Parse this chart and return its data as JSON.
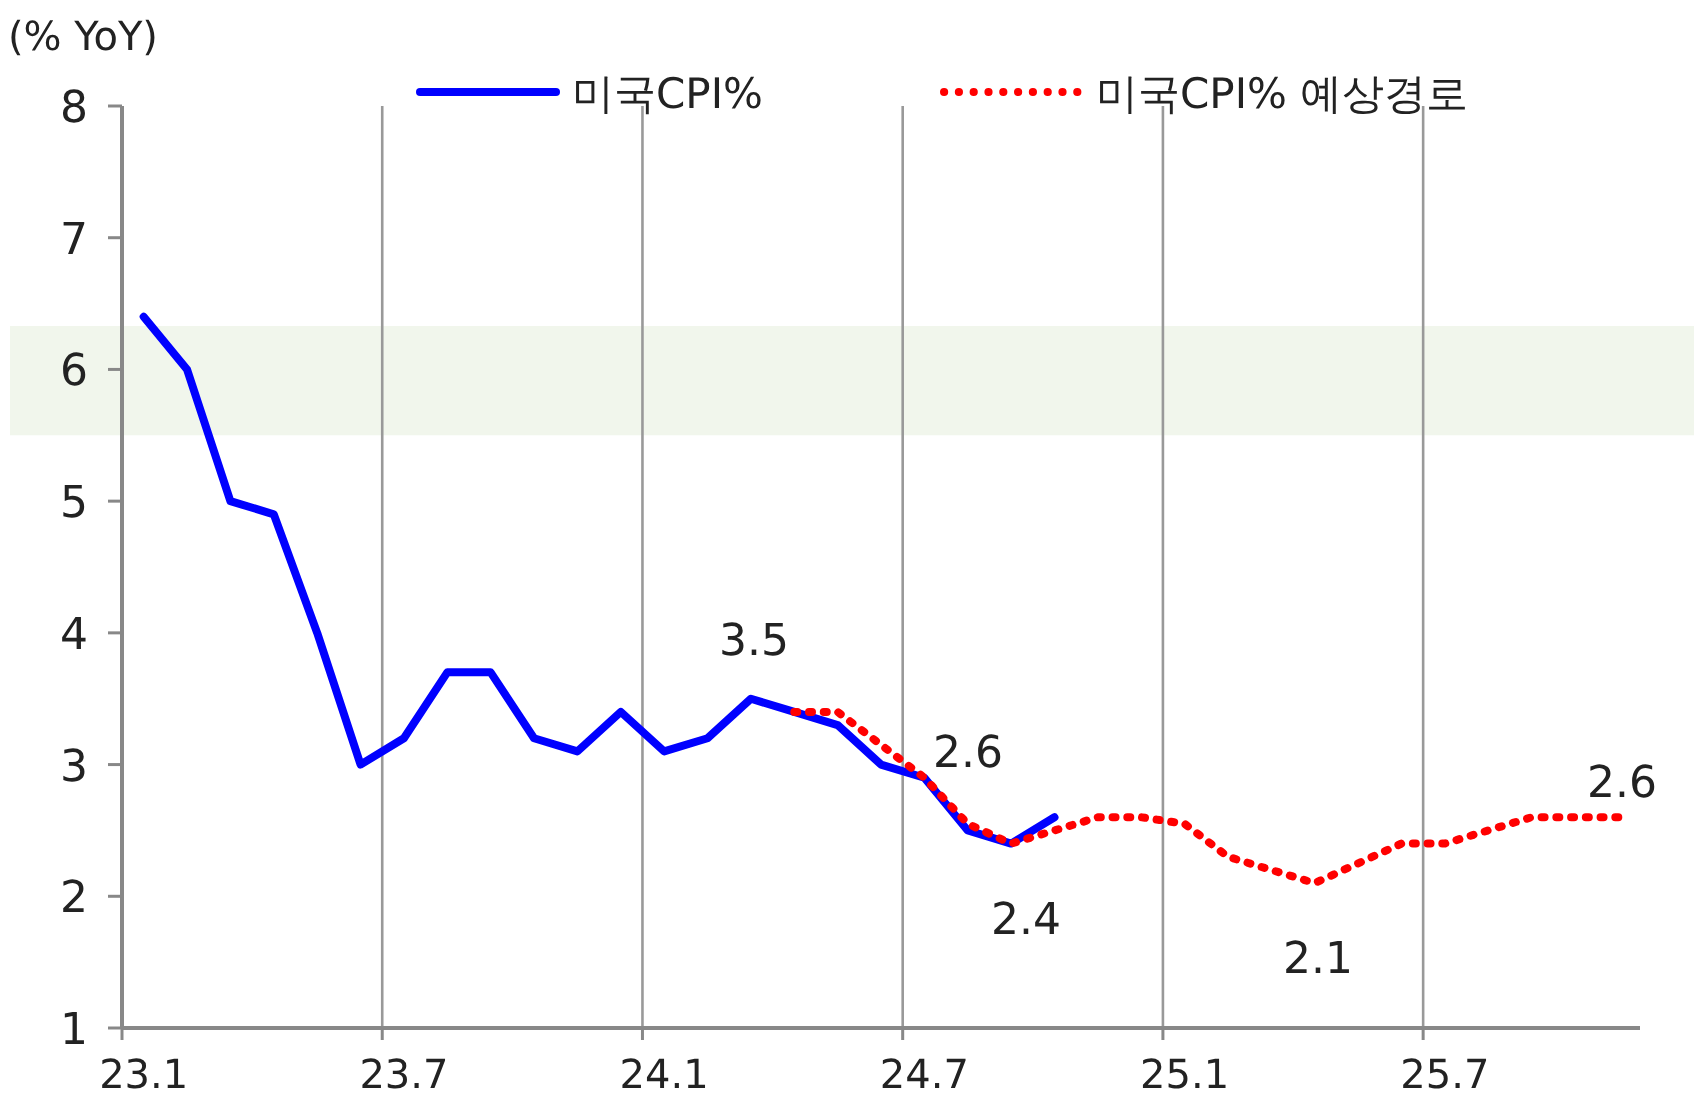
{
  "chart_data": {
    "type": "line",
    "ylabel": "(% YoY)",
    "categories": [
      "23.1",
      null,
      null,
      null,
      null,
      null,
      "23.7",
      null,
      null,
      null,
      null,
      null,
      "24.1",
      null,
      null,
      null,
      null,
      null,
      "24.7",
      null,
      null,
      null,
      null,
      null,
      "25.1",
      null,
      null,
      null,
      null,
      null,
      "25.7",
      null,
      null,
      null,
      null
    ],
    "ylim": [
      1,
      8
    ],
    "yticks": [
      1,
      2,
      3,
      4,
      5,
      6,
      7,
      8
    ],
    "grid": "x",
    "legend": "top",
    "bands": [
      {
        "axis": "y",
        "from": 5.5,
        "to": 6.33,
        "color": "#f1f6ec"
      }
    ],
    "series": [
      {
        "name": "미국CPI%",
        "color": "#0000ff",
        "line_style": "solid",
        "values": [
          6.4,
          6.0,
          5.0,
          4.9,
          4.0,
          3.0,
          3.2,
          3.7,
          3.7,
          3.2,
          3.1,
          3.4,
          3.1,
          3.2,
          3.5,
          3.4,
          3.3,
          3.0,
          2.9,
          2.5,
          2.4,
          2.6,
          null,
          null,
          null,
          null,
          null,
          null,
          null,
          null,
          null,
          null,
          null,
          null,
          null
        ]
      },
      {
        "name": "미국CPI% 예상경로",
        "color": "#ff0000",
        "line_style": "dotted",
        "values": [
          null,
          null,
          null,
          null,
          null,
          null,
          null,
          null,
          null,
          null,
          null,
          null,
          null,
          null,
          null,
          3.4,
          3.4,
          3.15,
          2.9,
          2.55,
          2.4,
          2.5,
          2.6,
          2.6,
          2.55,
          2.3,
          2.2,
          2.1,
          2.25,
          2.4,
          2.4,
          2.5,
          2.6,
          2.6,
          2.6
        ]
      }
    ],
    "annotations": [
      {
        "text": "3.5",
        "y": 3.5
      },
      {
        "text": "2.6",
        "y": 2.6
      },
      {
        "text": "2.4",
        "y": 2.4
      },
      {
        "text": "2.1",
        "y": 2.1
      },
      {
        "text": "2.6",
        "y": 2.6
      }
    ]
  }
}
